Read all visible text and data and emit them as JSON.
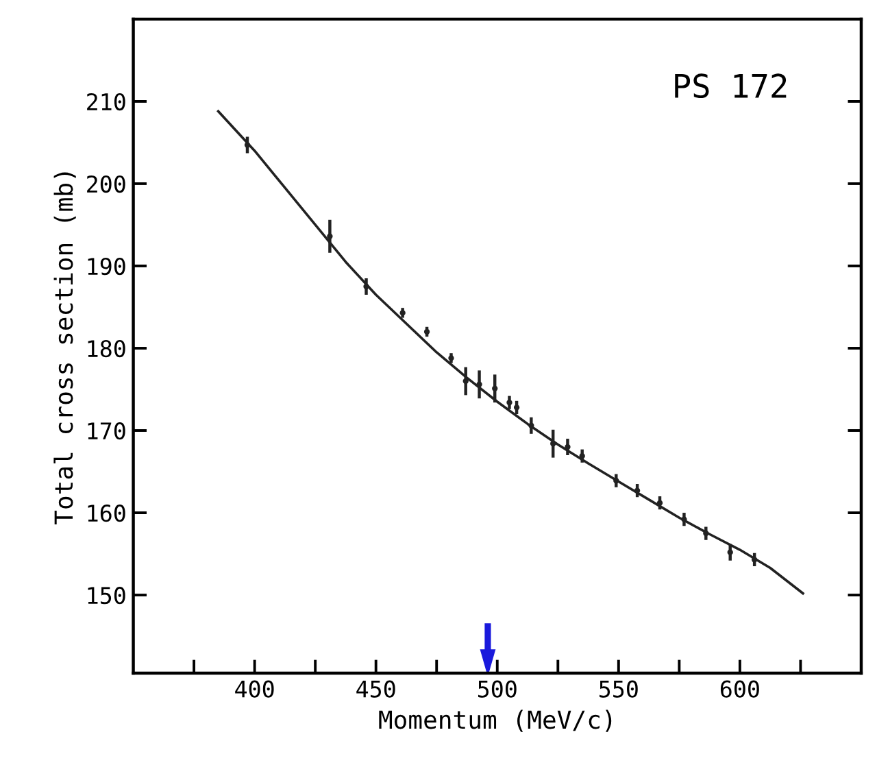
{
  "chart_data": {
    "type": "scatter",
    "xlabel": "Momentum (MeV/c)",
    "ylabel": "Total cross section (mb)",
    "annotations": [
      "PS 172"
    ],
    "xlim": [
      350,
      650
    ],
    "ylim": [
      140.5,
      220
    ],
    "xticks": [
      {
        "value": 375,
        "label": null
      },
      400,
      {
        "value": 425,
        "label": null
      },
      450,
      {
        "value": 475,
        "label": null
      },
      500,
      {
        "value": 525,
        "label": null
      },
      550,
      {
        "value": 575,
        "label": null
      },
      600,
      {
        "value": 625,
        "label": null
      }
    ],
    "yticks": [
      150,
      160,
      170,
      180,
      190,
      200,
      210
    ],
    "grid": false,
    "legend": false,
    "series": [
      {
        "type": "scatter",
        "marker": "circle",
        "color": "#222222",
        "x": [
          397,
          431,
          446,
          461,
          471,
          481,
          487,
          492.6,
          499,
          505,
          508,
          514,
          523,
          529,
          535,
          549,
          557.7,
          567,
          577,
          586,
          596,
          606
        ],
        "values": [
          204.7,
          193.6,
          187.5,
          184.3,
          182.0,
          178.8,
          176.0,
          175.6,
          175.1,
          173.4,
          172.8,
          170.6,
          168.4,
          168.0,
          166.9,
          163.9,
          162.7,
          161.2,
          159.2,
          157.5,
          155.2,
          154.3
        ],
        "errors": [
          1,
          2,
          1,
          0.6,
          0.6,
          0.6,
          1.7,
          1.7,
          1.7,
          0.8,
          0.8,
          1,
          1.7,
          1,
          0.8,
          0.8,
          0.8,
          0.8,
          0.8,
          0.8,
          1,
          0.8
        ]
      },
      {
        "type": "line",
        "marker": "none",
        "color": "#222222",
        "line_style": "solid",
        "x": [
          385,
          400,
          412.5,
          425,
          437.5,
          450,
          462.5,
          475,
          487.5,
          500,
          512.5,
          525,
          537.5,
          550,
          562.5,
          575,
          587.5,
          600,
          612.5,
          626
        ],
        "values": [
          208.8,
          204,
          199.5,
          195,
          190.5,
          186.5,
          183,
          179.5,
          176.4,
          173.5,
          170.8,
          168.3,
          166,
          163.8,
          161.6,
          159.4,
          157.4,
          155.5,
          153.3,
          150.2
        ]
      }
    ]
  }
}
